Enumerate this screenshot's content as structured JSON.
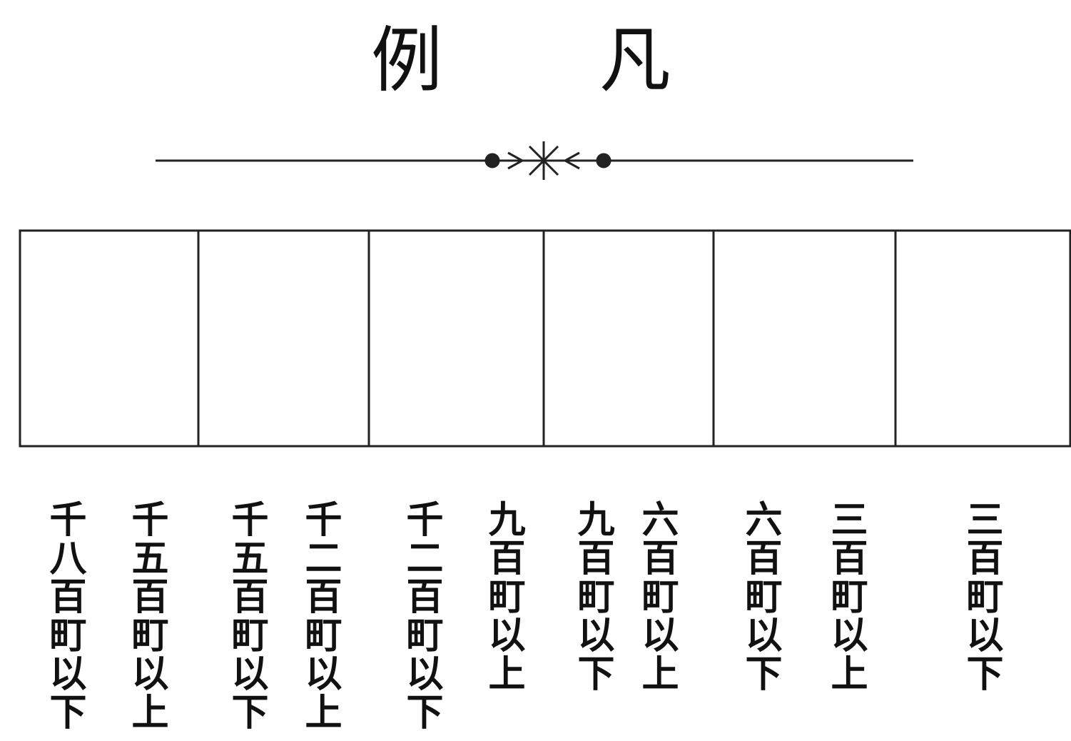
{
  "header": {
    "title": "凡例"
  },
  "legend": {
    "items": [
      {
        "labels": [
          "千八百町以下",
          "千五百町以上"
        ]
      },
      {
        "labels": [
          "千五百町以下",
          "千二百町以上"
        ]
      },
      {
        "labels": [
          "千二百町以下",
          "九百町以上"
        ]
      },
      {
        "labels": [
          "九百町以下",
          "六百町以上"
        ]
      },
      {
        "labels": [
          "六百町以下",
          "三百町以上"
        ]
      },
      {
        "labels": [
          "三百町以下"
        ]
      }
    ]
  }
}
